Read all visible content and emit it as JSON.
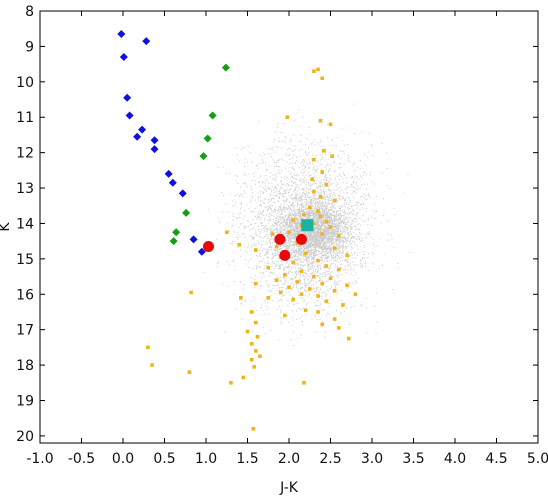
{
  "chart_data": {
    "type": "scatter",
    "title": "",
    "xlabel": "J-K",
    "ylabel": "K",
    "xlim": [
      -1.0,
      5.0
    ],
    "ylim": [
      20.2,
      8.0
    ],
    "y_inverted": true,
    "grid": false,
    "x_ticks": [
      "-1.0",
      "-0.5",
      "0.0",
      "0.5",
      "1.0",
      "1.5",
      "2.0",
      "2.5",
      "3.0",
      "3.5",
      "4.0",
      "4.5",
      "5.0"
    ],
    "y_ticks": [
      "8",
      "9",
      "10",
      "11",
      "12",
      "13",
      "14",
      "15",
      "16",
      "17",
      "18",
      "19",
      "20"
    ],
    "background_field": {
      "color": "#8c8c8c",
      "core": {
        "x": 2.3,
        "y": 14.2
      },
      "extent": {
        "x_min": 0.9,
        "x_max": 4.4,
        "y_min": 9.0,
        "y_max": 17.5
      }
    },
    "series": [
      {
        "marker": "diamond",
        "color": "#1010e0",
        "points": [
          {
            "x": -0.02,
            "y": 8.65
          },
          {
            "x": 0.28,
            "y": 8.85
          },
          {
            "x": 0.01,
            "y": 9.3
          },
          {
            "x": 0.05,
            "y": 10.45
          },
          {
            "x": 0.08,
            "y": 10.95
          },
          {
            "x": 0.23,
            "y": 11.35
          },
          {
            "x": 0.17,
            "y": 11.55
          },
          {
            "x": 0.38,
            "y": 11.65
          },
          {
            "x": 0.38,
            "y": 11.9
          },
          {
            "x": 0.55,
            "y": 12.6
          },
          {
            "x": 0.6,
            "y": 12.85
          },
          {
            "x": 0.72,
            "y": 13.15
          },
          {
            "x": 0.85,
            "y": 14.45
          },
          {
            "x": 0.95,
            "y": 14.8
          }
        ]
      },
      {
        "marker": "diamond",
        "color": "#10a010",
        "points": [
          {
            "x": 1.24,
            "y": 9.6
          },
          {
            "x": 1.08,
            "y": 10.95
          },
          {
            "x": 1.02,
            "y": 11.6
          },
          {
            "x": 0.97,
            "y": 12.1
          },
          {
            "x": 0.76,
            "y": 13.7
          },
          {
            "x": 0.64,
            "y": 14.25
          },
          {
            "x": 0.61,
            "y": 14.5
          }
        ]
      },
      {
        "marker": "square",
        "color": "#f0b418",
        "points": [
          {
            "x": 2.3,
            "y": 9.7
          },
          {
            "x": 2.35,
            "y": 9.65
          },
          {
            "x": 2.4,
            "y": 9.9
          },
          {
            "x": 1.98,
            "y": 11.0
          },
          {
            "x": 2.38,
            "y": 11.1
          },
          {
            "x": 2.5,
            "y": 11.2
          },
          {
            "x": 2.42,
            "y": 11.95
          },
          {
            "x": 2.52,
            "y": 12.1
          },
          {
            "x": 2.3,
            "y": 12.2
          },
          {
            "x": 2.4,
            "y": 12.55
          },
          {
            "x": 2.28,
            "y": 12.75
          },
          {
            "x": 2.45,
            "y": 12.9
          },
          {
            "x": 2.3,
            "y": 13.1
          },
          {
            "x": 2.38,
            "y": 13.25
          },
          {
            "x": 2.55,
            "y": 13.35
          },
          {
            "x": 2.25,
            "y": 13.55
          },
          {
            "x": 2.35,
            "y": 13.65
          },
          {
            "x": 2.18,
            "y": 13.75
          },
          {
            "x": 2.38,
            "y": 13.8
          },
          {
            "x": 2.05,
            "y": 13.9
          },
          {
            "x": 2.45,
            "y": 13.95
          },
          {
            "x": 2.3,
            "y": 14.0
          },
          {
            "x": 2.15,
            "y": 14.05
          },
          {
            "x": 2.5,
            "y": 14.1
          },
          {
            "x": 2.28,
            "y": 14.15
          },
          {
            "x": 2.0,
            "y": 14.25
          },
          {
            "x": 2.4,
            "y": 14.3
          },
          {
            "x": 1.8,
            "y": 14.3
          },
          {
            "x": 2.6,
            "y": 14.35
          },
          {
            "x": 2.1,
            "y": 14.55
          },
          {
            "x": 1.85,
            "y": 14.65
          },
          {
            "x": 2.55,
            "y": 14.7
          },
          {
            "x": 1.25,
            "y": 14.25
          },
          {
            "x": 1.4,
            "y": 14.6
          },
          {
            "x": 1.6,
            "y": 14.75
          },
          {
            "x": 2.2,
            "y": 14.85
          },
          {
            "x": 2.7,
            "y": 14.9
          },
          {
            "x": 1.9,
            "y": 14.95
          },
          {
            "x": 2.35,
            "y": 15.05
          },
          {
            "x": 2.05,
            "y": 15.1
          },
          {
            "x": 2.45,
            "y": 15.2
          },
          {
            "x": 1.75,
            "y": 15.25
          },
          {
            "x": 2.6,
            "y": 15.3
          },
          {
            "x": 2.15,
            "y": 15.35
          },
          {
            "x": 1.95,
            "y": 15.45
          },
          {
            "x": 2.3,
            "y": 15.5
          },
          {
            "x": 2.5,
            "y": 15.55
          },
          {
            "x": 1.85,
            "y": 15.6
          },
          {
            "x": 2.1,
            "y": 15.65
          },
          {
            "x": 2.4,
            "y": 15.7
          },
          {
            "x": 2.7,
            "y": 15.75
          },
          {
            "x": 1.6,
            "y": 15.7
          },
          {
            "x": 2.0,
            "y": 15.8
          },
          {
            "x": 2.25,
            "y": 15.85
          },
          {
            "x": 2.55,
            "y": 15.9
          },
          {
            "x": 1.9,
            "y": 15.95
          },
          {
            "x": 2.15,
            "y": 16.0
          },
          {
            "x": 2.35,
            "y": 16.05
          },
          {
            "x": 2.8,
            "y": 16.0
          },
          {
            "x": 1.75,
            "y": 16.1
          },
          {
            "x": 2.05,
            "y": 16.15
          },
          {
            "x": 2.45,
            "y": 16.2
          },
          {
            "x": 2.65,
            "y": 16.3
          },
          {
            "x": 2.2,
            "y": 16.45
          },
          {
            "x": 1.95,
            "y": 16.6
          },
          {
            "x": 2.35,
            "y": 16.5
          },
          {
            "x": 2.55,
            "y": 16.7
          },
          {
            "x": 2.4,
            "y": 16.85
          },
          {
            "x": 2.6,
            "y": 16.95
          },
          {
            "x": 2.72,
            "y": 17.25
          },
          {
            "x": 0.82,
            "y": 15.95
          },
          {
            "x": 1.42,
            "y": 16.1
          },
          {
            "x": 1.55,
            "y": 16.5
          },
          {
            "x": 1.6,
            "y": 16.8
          },
          {
            "x": 1.5,
            "y": 17.05
          },
          {
            "x": 1.62,
            "y": 17.2
          },
          {
            "x": 1.55,
            "y": 17.4
          },
          {
            "x": 1.6,
            "y": 17.6
          },
          {
            "x": 1.65,
            "y": 17.75
          },
          {
            "x": 1.55,
            "y": 17.85
          },
          {
            "x": 1.58,
            "y": 18.05
          },
          {
            "x": 1.45,
            "y": 18.35
          },
          {
            "x": 1.3,
            "y": 18.5
          },
          {
            "x": 0.3,
            "y": 17.5
          },
          {
            "x": 0.35,
            "y": 18.0
          },
          {
            "x": 0.8,
            "y": 18.2
          },
          {
            "x": 2.18,
            "y": 18.5
          },
          {
            "x": 1.57,
            "y": 19.8
          }
        ]
      },
      {
        "marker": "circle",
        "color": "#e80808",
        "points": [
          {
            "x": 1.03,
            "y": 14.65
          },
          {
            "x": 1.89,
            "y": 14.45
          },
          {
            "x": 2.15,
            "y": 14.45
          },
          {
            "x": 1.95,
            "y": 14.9
          }
        ]
      },
      {
        "marker": "square-large",
        "color": "#18b4a0",
        "points": [
          {
            "x": 2.22,
            "y": 14.05
          }
        ]
      }
    ]
  }
}
